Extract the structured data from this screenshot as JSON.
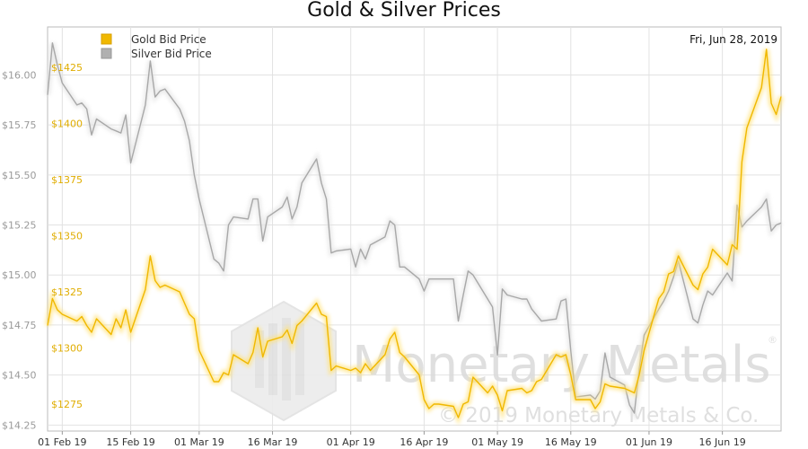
{
  "chart_data": {
    "type": "line",
    "title": "Gold & Silver Prices",
    "date_label": "Fri, Jun 28, 2019",
    "watermark": {
      "brand": "Monetary Metals",
      "registered": "®",
      "copyright": "© 2019 Monetary Metals & Co."
    },
    "x_ticks": [
      "01 Feb 19",
      "15 Feb 19",
      "01 Mar 19",
      "16 Mar 19",
      "01 Apr 19",
      "16 Apr 19",
      "01 May 19",
      "16 May 19",
      "01 Jun 19",
      "16 Jun 19"
    ],
    "x_tick_dates": [
      "2019-02-01",
      "2019-02-15",
      "2019-03-01",
      "2019-03-16",
      "2019-04-01",
      "2019-04-16",
      "2019-05-01",
      "2019-05-16",
      "2019-06-01",
      "2019-06-16"
    ],
    "x_range": [
      "2019-01-29",
      "2019-06-28"
    ],
    "y_left": {
      "ticks": [
        "$14.25",
        "$14.50",
        "$14.75",
        "$15.00",
        "$15.25",
        "$15.50",
        "$15.75",
        "$16.00"
      ],
      "range": [
        14.22,
        16.24
      ],
      "color": "#9a9a9a"
    },
    "y_right": {
      "ticks": [
        "$1275",
        "$1300",
        "$1325",
        "$1350",
        "$1375",
        "$1400",
        "$1425"
      ],
      "range": [
        1263,
        1443
      ],
      "color": "#e6b400"
    },
    "grid": true,
    "legend_position": "top-left",
    "series": [
      {
        "name": "Gold Bid Price",
        "axis": "right",
        "color": "#f0b800",
        "points": [
          [
            "2019-01-29",
            1310
          ],
          [
            "2019-01-30",
            1322
          ],
          [
            "2019-01-31",
            1317
          ],
          [
            "2019-02-01",
            1315
          ],
          [
            "2019-02-04",
            1312
          ],
          [
            "2019-02-05",
            1314
          ],
          [
            "2019-02-06",
            1310
          ],
          [
            "2019-02-07",
            1307
          ],
          [
            "2019-02-08",
            1313
          ],
          [
            "2019-02-11",
            1306
          ],
          [
            "2019-02-12",
            1313
          ],
          [
            "2019-02-13",
            1309
          ],
          [
            "2019-02-14",
            1317
          ],
          [
            "2019-02-15",
            1307
          ],
          [
            "2019-02-18",
            1326
          ],
          [
            "2019-02-19",
            1341
          ],
          [
            "2019-02-20",
            1330
          ],
          [
            "2019-02-21",
            1327
          ],
          [
            "2019-02-22",
            1328
          ],
          [
            "2019-02-25",
            1325
          ],
          [
            "2019-02-26",
            1320
          ],
          [
            "2019-02-27",
            1315
          ],
          [
            "2019-02-28",
            1313
          ],
          [
            "2019-03-01",
            1299
          ],
          [
            "2019-03-04",
            1285
          ],
          [
            "2019-03-05",
            1285
          ],
          [
            "2019-03-06",
            1289
          ],
          [
            "2019-03-07",
            1288
          ],
          [
            "2019-03-08",
            1297
          ],
          [
            "2019-03-11",
            1293
          ],
          [
            "2019-03-12",
            1298
          ],
          [
            "2019-03-13",
            1309
          ],
          [
            "2019-03-14",
            1296
          ],
          [
            "2019-03-15",
            1303
          ],
          [
            "2019-03-18",
            1305
          ],
          [
            "2019-03-19",
            1308
          ],
          [
            "2019-03-20",
            1302
          ],
          [
            "2019-03-21",
            1310
          ],
          [
            "2019-03-22",
            1312
          ],
          [
            "2019-03-25",
            1320
          ],
          [
            "2019-03-26",
            1315
          ],
          [
            "2019-03-27",
            1314
          ],
          [
            "2019-03-28",
            1290
          ],
          [
            "2019-03-29",
            1292
          ],
          [
            "2019-04-01",
            1290
          ],
          [
            "2019-04-02",
            1291
          ],
          [
            "2019-04-03",
            1289
          ],
          [
            "2019-04-04",
            1293
          ],
          [
            "2019-04-05",
            1290
          ],
          [
            "2019-04-08",
            1297
          ],
          [
            "2019-04-09",
            1304
          ],
          [
            "2019-04-10",
            1307
          ],
          [
            "2019-04-11",
            1298
          ],
          [
            "2019-04-12",
            1296
          ],
          [
            "2019-04-15",
            1288
          ],
          [
            "2019-04-16",
            1277
          ],
          [
            "2019-04-17",
            1273
          ],
          [
            "2019-04-18",
            1275
          ],
          [
            "2019-04-19",
            1275
          ],
          [
            "2019-04-22",
            1274
          ],
          [
            "2019-04-23",
            1269
          ],
          [
            "2019-04-24",
            1275
          ],
          [
            "2019-04-25",
            1276
          ],
          [
            "2019-04-26",
            1287
          ],
          [
            "2019-04-29",
            1280
          ],
          [
            "2019-04-30",
            1283
          ],
          [
            "2019-05-01",
            1279
          ],
          [
            "2019-05-02",
            1272
          ],
          [
            "2019-05-03",
            1281
          ],
          [
            "2019-05-06",
            1282
          ],
          [
            "2019-05-07",
            1280
          ],
          [
            "2019-05-08",
            1281
          ],
          [
            "2019-05-09",
            1285
          ],
          [
            "2019-05-10",
            1286
          ],
          [
            "2019-05-13",
            1297
          ],
          [
            "2019-05-14",
            1296
          ],
          [
            "2019-05-15",
            1297
          ],
          [
            "2019-05-16",
            1288
          ],
          [
            "2019-05-17",
            1277
          ],
          [
            "2019-05-20",
            1277
          ],
          [
            "2019-05-21",
            1273
          ],
          [
            "2019-05-22",
            1276
          ],
          [
            "2019-05-23",
            1284
          ],
          [
            "2019-05-24",
            1283
          ],
          [
            "2019-05-27",
            1282
          ],
          [
            "2019-05-28",
            1281
          ],
          [
            "2019-05-29",
            1280
          ],
          [
            "2019-05-30",
            1288
          ],
          [
            "2019-05-31",
            1299
          ],
          [
            "2019-06-03",
            1322
          ],
          [
            "2019-06-04",
            1325
          ],
          [
            "2019-06-05",
            1333
          ],
          [
            "2019-06-06",
            1334
          ],
          [
            "2019-06-07",
            1341
          ],
          [
            "2019-06-10",
            1328
          ],
          [
            "2019-06-11",
            1326
          ],
          [
            "2019-06-12",
            1333
          ],
          [
            "2019-06-13",
            1336
          ],
          [
            "2019-06-14",
            1344
          ],
          [
            "2019-06-17",
            1337
          ],
          [
            "2019-06-18",
            1346
          ],
          [
            "2019-06-19",
            1344
          ],
          [
            "2019-06-20",
            1383
          ],
          [
            "2019-06-21",
            1398
          ],
          [
            "2019-06-24",
            1416
          ],
          [
            "2019-06-25",
            1433
          ],
          [
            "2019-06-26",
            1409
          ],
          [
            "2019-06-27",
            1404
          ],
          [
            "2019-06-28",
            1412
          ]
        ]
      },
      {
        "name": "Silver Bid Price",
        "axis": "left",
        "color": "#a8a8a8",
        "points": [
          [
            "2019-01-29",
            15.9
          ],
          [
            "2019-01-30",
            16.16
          ],
          [
            "2019-01-31",
            16.05
          ],
          [
            "2019-02-01",
            15.96
          ],
          [
            "2019-02-04",
            15.85
          ],
          [
            "2019-02-05",
            15.86
          ],
          [
            "2019-02-06",
            15.83
          ],
          [
            "2019-02-07",
            15.7
          ],
          [
            "2019-02-08",
            15.78
          ],
          [
            "2019-02-11",
            15.73
          ],
          [
            "2019-02-12",
            15.72
          ],
          [
            "2019-02-13",
            15.71
          ],
          [
            "2019-02-14",
            15.8
          ],
          [
            "2019-02-15",
            15.56
          ],
          [
            "2019-02-18",
            15.85
          ],
          [
            "2019-02-19",
            16.07
          ],
          [
            "2019-02-20",
            15.89
          ],
          [
            "2019-02-21",
            15.92
          ],
          [
            "2019-02-22",
            15.93
          ],
          [
            "2019-02-25",
            15.83
          ],
          [
            "2019-02-26",
            15.77
          ],
          [
            "2019-02-27",
            15.67
          ],
          [
            "2019-02-28",
            15.5
          ],
          [
            "2019-03-01",
            15.38
          ],
          [
            "2019-03-04",
            15.08
          ],
          [
            "2019-03-05",
            15.06
          ],
          [
            "2019-03-06",
            15.02
          ],
          [
            "2019-03-07",
            15.25
          ],
          [
            "2019-03-08",
            15.29
          ],
          [
            "2019-03-11",
            15.28
          ],
          [
            "2019-03-12",
            15.38
          ],
          [
            "2019-03-13",
            15.38
          ],
          [
            "2019-03-14",
            15.17
          ],
          [
            "2019-03-15",
            15.29
          ],
          [
            "2019-03-18",
            15.34
          ],
          [
            "2019-03-19",
            15.39
          ],
          [
            "2019-03-20",
            15.28
          ],
          [
            "2019-03-21",
            15.34
          ],
          [
            "2019-03-22",
            15.46
          ],
          [
            "2019-03-25",
            15.58
          ],
          [
            "2019-03-26",
            15.46
          ],
          [
            "2019-03-27",
            15.38
          ],
          [
            "2019-03-28",
            15.11
          ],
          [
            "2019-03-29",
            15.12
          ],
          [
            "2019-04-01",
            15.13
          ],
          [
            "2019-04-02",
            15.04
          ],
          [
            "2019-04-03",
            15.13
          ],
          [
            "2019-04-04",
            15.08
          ],
          [
            "2019-04-05",
            15.15
          ],
          [
            "2019-04-08",
            15.19
          ],
          [
            "2019-04-09",
            15.27
          ],
          [
            "2019-04-10",
            15.25
          ],
          [
            "2019-04-11",
            15.04
          ],
          [
            "2019-04-12",
            15.04
          ],
          [
            "2019-04-15",
            14.98
          ],
          [
            "2019-04-16",
            14.92
          ],
          [
            "2019-04-17",
            14.98
          ],
          [
            "2019-04-18",
            14.98
          ],
          [
            "2019-04-19",
            14.98
          ],
          [
            "2019-04-22",
            14.98
          ],
          [
            "2019-04-23",
            14.77
          ],
          [
            "2019-04-24",
            14.9
          ],
          [
            "2019-04-25",
            15.02
          ],
          [
            "2019-04-26",
            15.0
          ],
          [
            "2019-04-29",
            14.88
          ],
          [
            "2019-04-30",
            14.84
          ],
          [
            "2019-05-01",
            14.6
          ],
          [
            "2019-05-02",
            14.93
          ],
          [
            "2019-05-03",
            14.9
          ],
          [
            "2019-05-06",
            14.88
          ],
          [
            "2019-05-07",
            14.88
          ],
          [
            "2019-05-08",
            14.83
          ],
          [
            "2019-05-09",
            14.8
          ],
          [
            "2019-05-10",
            14.77
          ],
          [
            "2019-05-13",
            14.78
          ],
          [
            "2019-05-14",
            14.87
          ],
          [
            "2019-05-15",
            14.88
          ],
          [
            "2019-05-16",
            14.62
          ],
          [
            "2019-05-17",
            14.39
          ],
          [
            "2019-05-20",
            14.4
          ],
          [
            "2019-05-21",
            14.38
          ],
          [
            "2019-05-22",
            14.42
          ],
          [
            "2019-05-23",
            14.61
          ],
          [
            "2019-05-24",
            14.49
          ],
          [
            "2019-05-27",
            14.45
          ],
          [
            "2019-05-28",
            14.35
          ],
          [
            "2019-05-29",
            14.31
          ],
          [
            "2019-05-30",
            14.53
          ],
          [
            "2019-05-31",
            14.7
          ],
          [
            "2019-06-03",
            14.83
          ],
          [
            "2019-06-04",
            14.87
          ],
          [
            "2019-06-05",
            14.92
          ],
          [
            "2019-06-06",
            14.99
          ],
          [
            "2019-06-07",
            15.07
          ],
          [
            "2019-06-10",
            14.78
          ],
          [
            "2019-06-11",
            14.76
          ],
          [
            "2019-06-12",
            14.85
          ],
          [
            "2019-06-13",
            14.92
          ],
          [
            "2019-06-14",
            14.9
          ],
          [
            "2019-06-17",
            15.01
          ],
          [
            "2019-06-18",
            14.97
          ],
          [
            "2019-06-19",
            15.35
          ],
          [
            "2019-06-20",
            15.24
          ],
          [
            "2019-06-21",
            15.27
          ],
          [
            "2019-06-24",
            15.34
          ],
          [
            "2019-06-25",
            15.38
          ],
          [
            "2019-06-26",
            15.22
          ],
          [
            "2019-06-27",
            15.25
          ],
          [
            "2019-06-28",
            15.26
          ]
        ]
      }
    ]
  }
}
